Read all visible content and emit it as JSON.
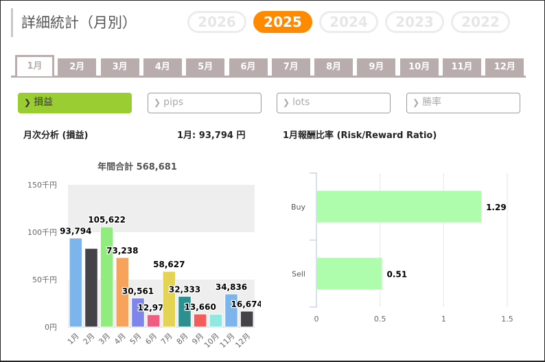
{
  "page": {
    "title": "詳細統計（月別）"
  },
  "years": [
    {
      "label": "2026",
      "active": false
    },
    {
      "label": "2025",
      "active": true
    },
    {
      "label": "2024",
      "active": false
    },
    {
      "label": "2023",
      "active": false
    },
    {
      "label": "2022",
      "active": false
    }
  ],
  "month_tabs": [
    "1月",
    "2月",
    "3月",
    "4月",
    "5月",
    "6月",
    "7月",
    "8月",
    "9月",
    "10月",
    "11月",
    "12月"
  ],
  "active_month_index": 0,
  "metrics": [
    {
      "label": "損益",
      "active": true
    },
    {
      "label": "pips",
      "active": false
    },
    {
      "label": "lots",
      "active": false
    },
    {
      "label": "勝率",
      "active": false
    }
  ],
  "left_panel": {
    "heading": "月次分析 (損益)",
    "selected_summary": "1月:  93,794 円"
  },
  "right_panel": {
    "heading": "1月報酬比率 (Risk/Reward Ratio)"
  },
  "colors": {
    "accent": "#ff8a00",
    "metric_active": "#9acd32",
    "tab": "#b8adac",
    "rr_bar": "#adfdad"
  },
  "chart_data": [
    {
      "type": "bar",
      "title": "年間合計 568,681",
      "categories": [
        "1月",
        "2月",
        "3月",
        "4月",
        "5月",
        "6月",
        "7月",
        "8月",
        "9月",
        "10月",
        "11月",
        "12月"
      ],
      "values": [
        93794,
        82866,
        105622,
        73238,
        30561,
        12970,
        58627,
        32333,
        13660,
        13500,
        34836,
        16674
      ],
      "data_labels": [
        "93,794",
        "",
        "105,622",
        "73,238",
        "30,561",
        "12,970",
        "58,627",
        "32,333",
        "13,660",
        "",
        "34,836",
        "16,674"
      ],
      "colors": [
        "#7cb5ec",
        "#434348",
        "#90ed7d",
        "#f7a35c",
        "#8085e9",
        "#f15c80",
        "#e4d354",
        "#2b908f",
        "#f45b5b",
        "#91e8e1",
        "#7cb5ec",
        "#434348"
      ],
      "yticks": [
        "0円",
        "50千円",
        "100千円",
        "150千円"
      ],
      "ytick_values": [
        0,
        50000,
        100000,
        150000
      ],
      "ylim": [
        0,
        150000
      ],
      "xlabel": "",
      "ylabel": "",
      "bands": "alternating grey bands 0-50k and 100k-150k"
    },
    {
      "type": "bar",
      "orientation": "horizontal",
      "title": "",
      "categories": [
        "Buy",
        "Sell"
      ],
      "values": [
        1.29,
        0.51
      ],
      "data_labels": [
        "1.29",
        "0.51"
      ],
      "xticks": [
        "0",
        "0.5",
        "1",
        "1.5"
      ],
      "xtick_values": [
        0,
        0.5,
        1,
        1.5
      ],
      "xlim": [
        0,
        1.5
      ],
      "grid": true
    }
  ]
}
